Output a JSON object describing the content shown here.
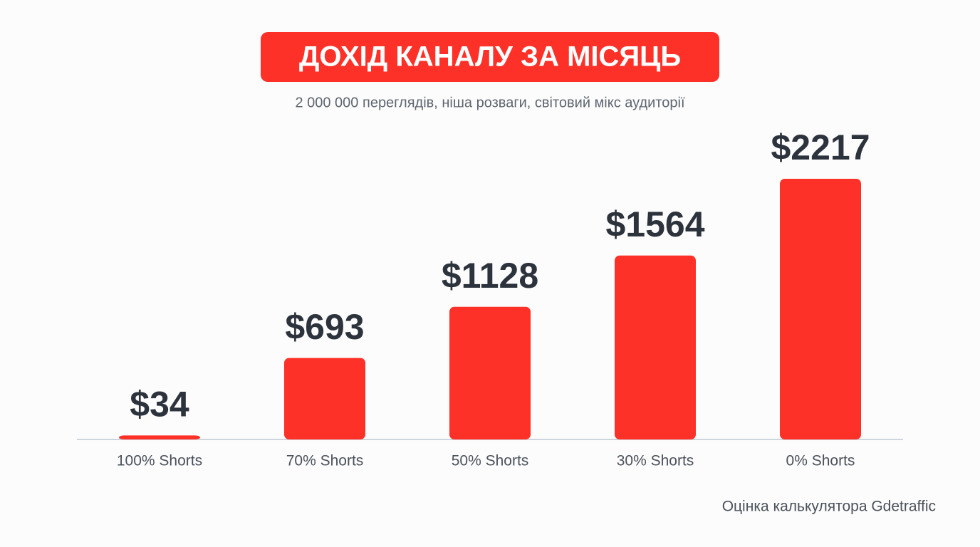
{
  "chart_data": {
    "type": "bar",
    "title": "ДОХІД КАНАЛУ ЗА МІСЯЦЬ",
    "subtitle": "2 000 000 переглядів, ніша розваги, світовий мікс аудиторії",
    "categories": [
      "100% Shorts",
      "70% Shorts",
      "50% Shorts",
      "30% Shorts",
      "0% Shorts"
    ],
    "values": [
      34,
      693,
      1128,
      1564,
      2217
    ],
    "value_labels": [
      "$34",
      "$693",
      "$1128",
      "$1564",
      "$2217"
    ],
    "color": "#fe3129",
    "source": "Оцінка калькулятора Gdetraffic"
  }
}
